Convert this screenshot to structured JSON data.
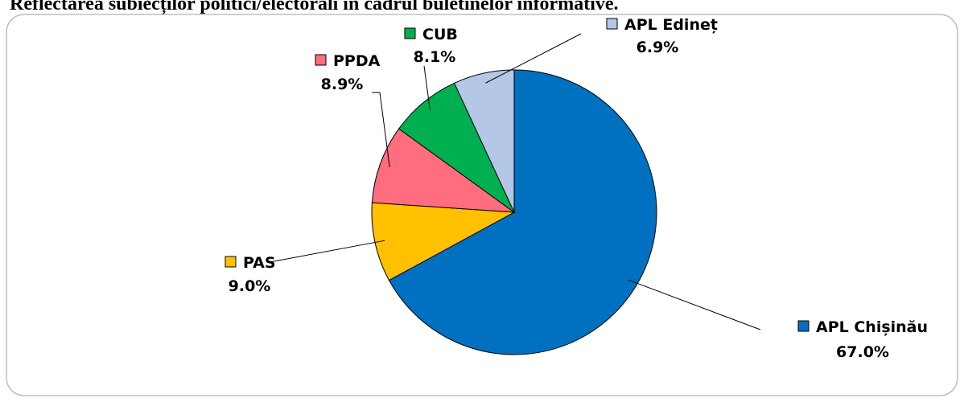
{
  "chart_data": {
    "type": "pie",
    "title": "Reflectarea subiecților politici/electorali în cadrul buletinelor informative.",
    "categories": [
      "APL Chișinău",
      "PAS",
      "PPDA",
      "CUB",
      "APL Edineț"
    ],
    "values": [
      67.0,
      9.0,
      8.9,
      8.1,
      6.9
    ],
    "value_labels": [
      "67.0%",
      "9.0%",
      "8.9%",
      "8.1%",
      "6.9%"
    ],
    "colors": [
      "#0070c0",
      "#ffc000",
      "#ff6d7f",
      "#00b050",
      "#b4c7e7"
    ]
  }
}
